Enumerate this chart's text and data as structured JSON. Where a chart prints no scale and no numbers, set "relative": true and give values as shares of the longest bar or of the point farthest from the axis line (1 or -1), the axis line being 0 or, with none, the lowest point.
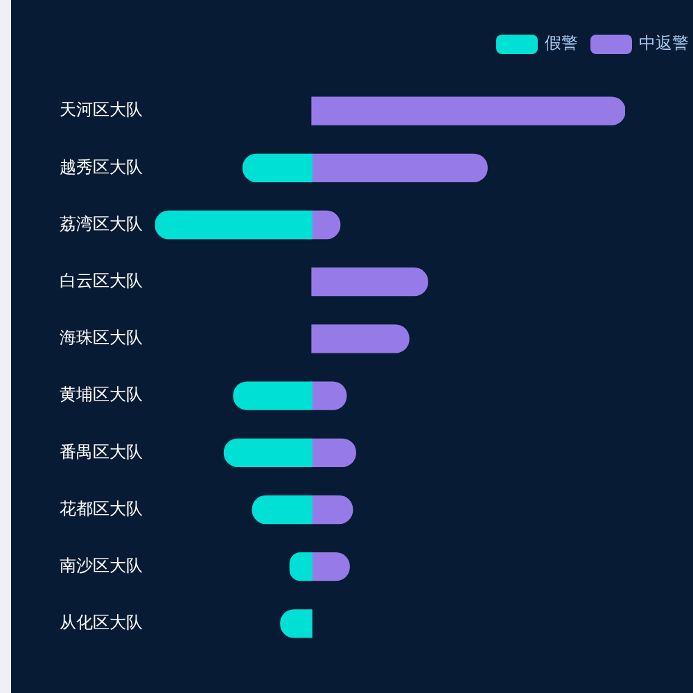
{
  "chart_data": {
    "type": "bar",
    "orientation": "horizontal",
    "stacked": true,
    "relative": true,
    "categories": [
      "天河区大队",
      "越秀区大队",
      "荔湾区大队",
      "白云区大队",
      "海珠区大队",
      "黄埔区大队",
      "番禺区大队",
      "花都区大队",
      "南沙区大队",
      "从化区大队"
    ],
    "series": [
      {
        "name": "假警",
        "color": "#00e0d5",
        "values": [
          null,
          -0.22,
          -0.5,
          null,
          null,
          -0.25,
          -0.28,
          -0.19,
          -0.07,
          -0.1
        ]
      },
      {
        "name": "中返警",
        "color": "#967be8",
        "values": [
          1,
          0.56,
          0.09,
          0.37,
          0.31,
          0.11,
          0.14,
          0.13,
          0.12,
          null
        ]
      }
    ],
    "legend": "top right"
  }
}
